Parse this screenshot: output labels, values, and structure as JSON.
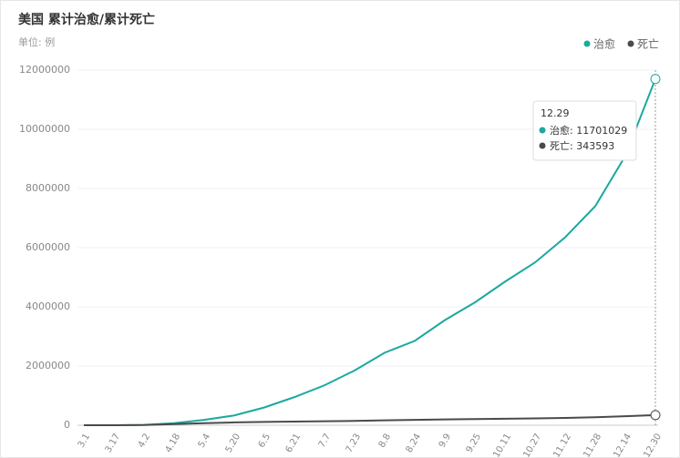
{
  "chart_data": {
    "type": "line",
    "title": "美国 累计治愈/累计死亡",
    "subtitle": "单位: 例",
    "categories": [
      "3.1",
      "3.17",
      "4.2",
      "4.18",
      "5.4",
      "5.20",
      "6.5",
      "6.21",
      "7.7",
      "7.23",
      "8.8",
      "8.24",
      "9.9",
      "9.25",
      "10.11",
      "10.27",
      "11.12",
      "11.28",
      "12.14",
      "12.30"
    ],
    "series": [
      {
        "name": "治愈",
        "color": "#1aa99e",
        "values": [
          0,
          0,
          10000,
          70000,
          180000,
          330000,
          600000,
          950000,
          1350000,
          1850000,
          2450000,
          2850000,
          3550000,
          4150000,
          4850000,
          5500000,
          6350000,
          7400000,
          9100000,
          11701029
        ]
      },
      {
        "name": "死亡",
        "color": "#4a4a4a",
        "values": [
          0,
          0,
          6000,
          40000,
          70000,
          95000,
          110000,
          122000,
          133000,
          146000,
          165000,
          180000,
          195000,
          207000,
          219000,
          231000,
          248000,
          270000,
          305000,
          343593
        ]
      }
    ],
    "ylim": [
      0,
      12000000
    ],
    "yticks": [
      0,
      2000000,
      4000000,
      6000000,
      8000000,
      10000000,
      12000000
    ],
    "grid": true,
    "legend": "top-right",
    "tooltip": {
      "label": "12.29"
    }
  }
}
